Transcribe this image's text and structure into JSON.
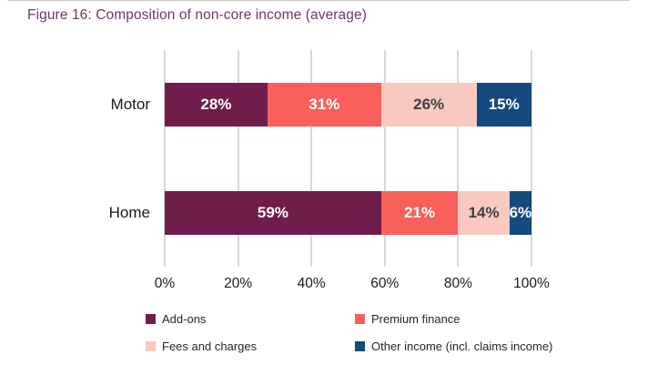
{
  "title": "Figure 16: Composition of non-core income (average)",
  "colors": {
    "title_text": "#6e3766",
    "gridline": "#d9d9d9",
    "axis_text": "#1a1a1a",
    "category_text": "#1a1a1a",
    "legend_text": "#262626"
  },
  "chart_data": {
    "type": "bar",
    "orientation": "horizontal",
    "stacked": true,
    "title": "Figure 16: Composition of non-core income (average)",
    "categories": [
      "Motor",
      "Home"
    ],
    "series": [
      {
        "name": "Add-ons",
        "color": "#701d4b",
        "label_color": "#ffffff",
        "values": [
          28,
          59
        ]
      },
      {
        "name": "Premium finance",
        "color": "#f9605c",
        "label_color": "#ffffff",
        "values": [
          31,
          21
        ]
      },
      {
        "name": "Fees and charges",
        "color": "#f8cabf",
        "label_color": "#404040",
        "values": [
          26,
          14
        ]
      },
      {
        "name": "Other income (incl. claims income)",
        "color": "#144a7d",
        "label_color": "#ffffff",
        "values": [
          15,
          6
        ]
      }
    ],
    "value_suffix": "%",
    "xlim": [
      0,
      100
    ],
    "x_ticks": [
      "0%",
      "20%",
      "40%",
      "60%",
      "80%",
      "100%"
    ],
    "grid": true,
    "legend_position": "bottom"
  }
}
